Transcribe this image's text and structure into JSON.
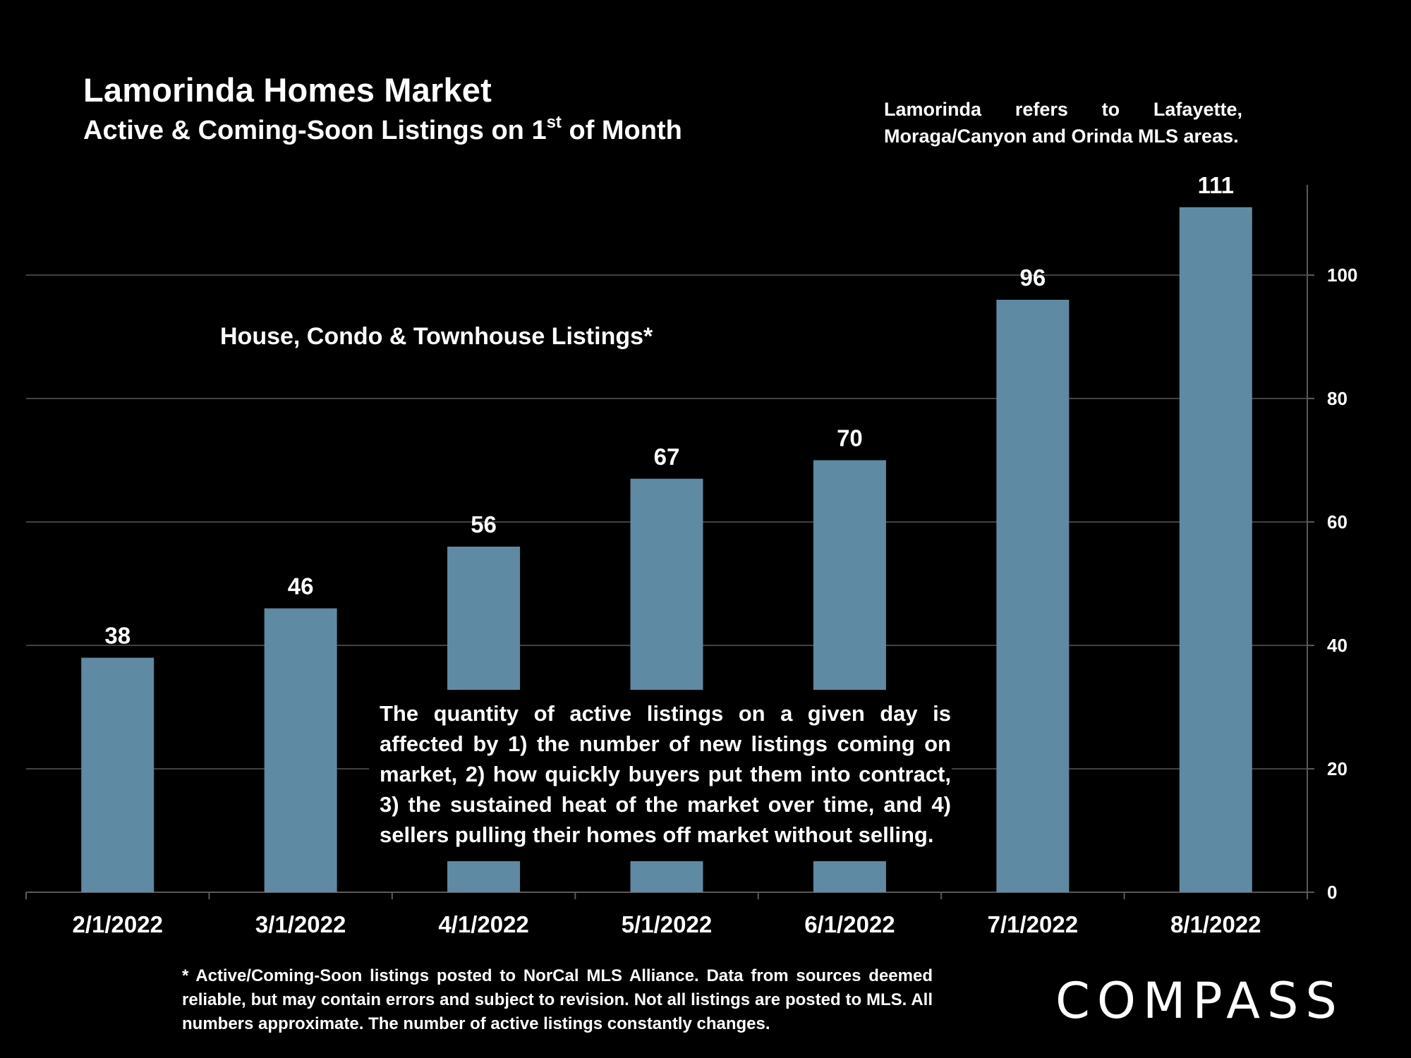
{
  "header": {
    "title": "Lamorinda Homes Market",
    "subtitle_main": "Active & Coming-Soon Listings on 1",
    "subtitle_sup": "st",
    "subtitle_end": " of Month"
  },
  "note": {
    "line1_words": [
      "Lamorinda",
      "refers",
      "to",
      "Lafayette,"
    ],
    "line2": "Moraga/Canyon and Orinda MLS areas."
  },
  "series_label": "House, Condo & Townhouse Listings*",
  "explanation": "The quantity of active listings on a given day is affected by 1) the number of new listings coming on market, 2) how quickly buyers put them into contract, 3) the sustained heat of the market over time, and 4) sellers pulling their homes off market without selling.",
  "footnote": "* Active/Coming-Soon listings posted to NorCal MLS Alliance.  Data from sources deemed reliable, but may contain errors and subject to revision.  Not all listings are posted to MLS. All numbers approximate. The number of active listings constantly changes.",
  "logo": "COMPASS",
  "colors": {
    "background": "#000000",
    "bar": "#5f8aa3",
    "grid": "#595959",
    "text": "#ffffff"
  },
  "chart_data": {
    "type": "bar",
    "categories": [
      "2/1/2022",
      "3/1/2022",
      "4/1/2022",
      "5/1/2022",
      "6/1/2022",
      "7/1/2022",
      "8/1/2022"
    ],
    "values": [
      38,
      46,
      56,
      67,
      70,
      96,
      111
    ],
    "y_ticks": [
      0,
      20,
      40,
      60,
      80,
      100
    ],
    "ylim": [
      0,
      115
    ],
    "y_axis_side": "right",
    "grid": true,
    "data_labels": true
  }
}
